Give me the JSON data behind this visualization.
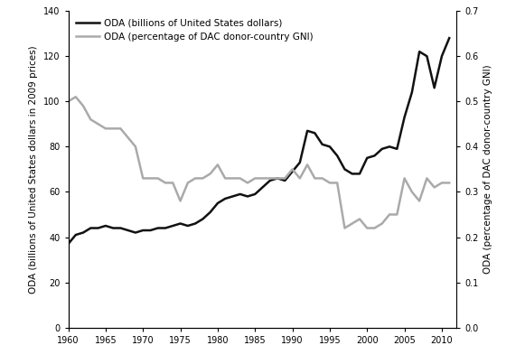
{
  "years": [
    1960,
    1961,
    1962,
    1963,
    1964,
    1965,
    1966,
    1967,
    1968,
    1969,
    1970,
    1971,
    1972,
    1973,
    1974,
    1975,
    1976,
    1977,
    1978,
    1979,
    1980,
    1981,
    1982,
    1983,
    1984,
    1985,
    1986,
    1987,
    1988,
    1989,
    1990,
    1991,
    1992,
    1993,
    1994,
    1995,
    1996,
    1997,
    1998,
    1999,
    2000,
    2001,
    2002,
    2003,
    2004,
    2005,
    2006,
    2007,
    2008,
    2009,
    2010,
    2011
  ],
  "oda_billions": [
    37,
    41,
    42,
    44,
    44,
    45,
    44,
    44,
    43,
    42,
    43,
    43,
    44,
    44,
    45,
    46,
    45,
    46,
    48,
    51,
    55,
    57,
    58,
    59,
    58,
    59,
    62,
    65,
    66,
    65,
    69,
    73,
    87,
    86,
    81,
    80,
    76,
    70,
    68,
    68,
    75,
    76,
    79,
    80,
    79,
    93,
    104,
    122,
    120,
    106,
    120,
    128
  ],
  "oda_pct": [
    0.5,
    0.51,
    0.49,
    0.46,
    0.45,
    0.44,
    0.44,
    0.44,
    0.42,
    0.4,
    0.33,
    0.33,
    0.33,
    0.32,
    0.32,
    0.28,
    0.32,
    0.33,
    0.33,
    0.34,
    0.36,
    0.33,
    0.33,
    0.33,
    0.32,
    0.33,
    0.33,
    0.33,
    0.33,
    0.33,
    0.35,
    0.33,
    0.36,
    0.33,
    0.33,
    0.32,
    0.32,
    0.22,
    0.23,
    0.24,
    0.22,
    0.22,
    0.23,
    0.25,
    0.25,
    0.33,
    0.3,
    0.28,
    0.33,
    0.31,
    0.32,
    0.32
  ],
  "legend_label_black": "ODA (billions of United States dollars)",
  "legend_label_gray": "ODA (percentage of DAC donor-country GNI)",
  "ylabel_left": "ODA (billions of United States dollars in 2009 prices)",
  "ylabel_right": "ODA (percentage of DAC donor-country GNI)",
  "ylim_left": [
    0,
    140
  ],
  "ylim_right": [
    0.0,
    0.7
  ],
  "xlim": [
    1960,
    2012
  ],
  "xticks": [
    1960,
    1965,
    1970,
    1975,
    1980,
    1985,
    1990,
    1995,
    2000,
    2005,
    2010
  ],
  "yticks_left": [
    0,
    20,
    40,
    60,
    80,
    100,
    120,
    140
  ],
  "yticks_right": [
    0.0,
    0.1,
    0.2,
    0.3,
    0.4,
    0.5,
    0.6,
    0.7
  ],
  "color_black": "#111111",
  "color_gray": "#aaaaaa",
  "background_color": "#ffffff",
  "linewidth_black": 1.8,
  "linewidth_gray": 1.8,
  "fontsize_ticks": 7,
  "fontsize_ylabel": 7.5,
  "fontsize_legend": 7.5
}
